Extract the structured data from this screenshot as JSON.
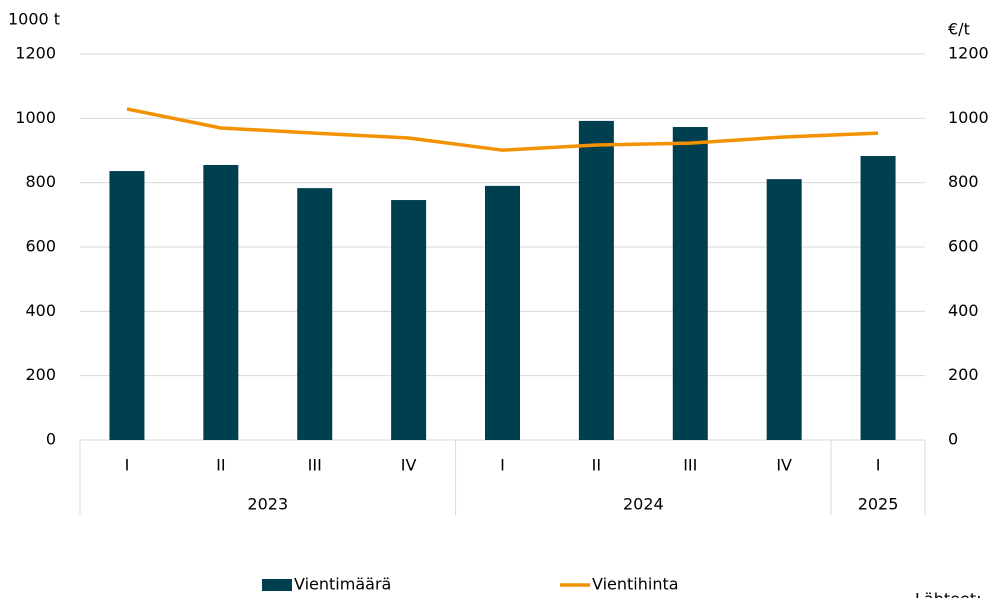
{
  "chart_data": {
    "type": "bar-line",
    "y_label": "1000 t",
    "y2_label": "€/t",
    "categories": [
      "I",
      "II",
      "III",
      "IV",
      "I",
      "II",
      "III",
      "IV",
      "I"
    ],
    "x_groups": [
      {
        "label": "2023",
        "count": 4
      },
      {
        "label": "2024",
        "count": 4
      },
      {
        "label": "2025",
        "count": 1
      }
    ],
    "series": [
      {
        "name": "Vientimäärä",
        "kind": "bar",
        "color": "#003f4f",
        "values": [
          836,
          855,
          783,
          746,
          790,
          992,
          973,
          811,
          883
        ]
      },
      {
        "name": "Vientihinta",
        "kind": "line",
        "axis": "y2",
        "color": "#f39200",
        "values": [
          1029,
          970,
          954,
          939,
          901,
          917,
          923,
          942,
          954
        ]
      }
    ],
    "ylim": [
      0,
      1200
    ],
    "yticks": [
      0,
      200,
      400,
      600,
      800,
      1000,
      1200
    ],
    "y2lim": [
      0,
      1200
    ],
    "y2ticks": [
      0,
      200,
      400,
      600,
      800,
      1000,
      1200
    ],
    "grid": true,
    "source": "Lähteet:"
  }
}
